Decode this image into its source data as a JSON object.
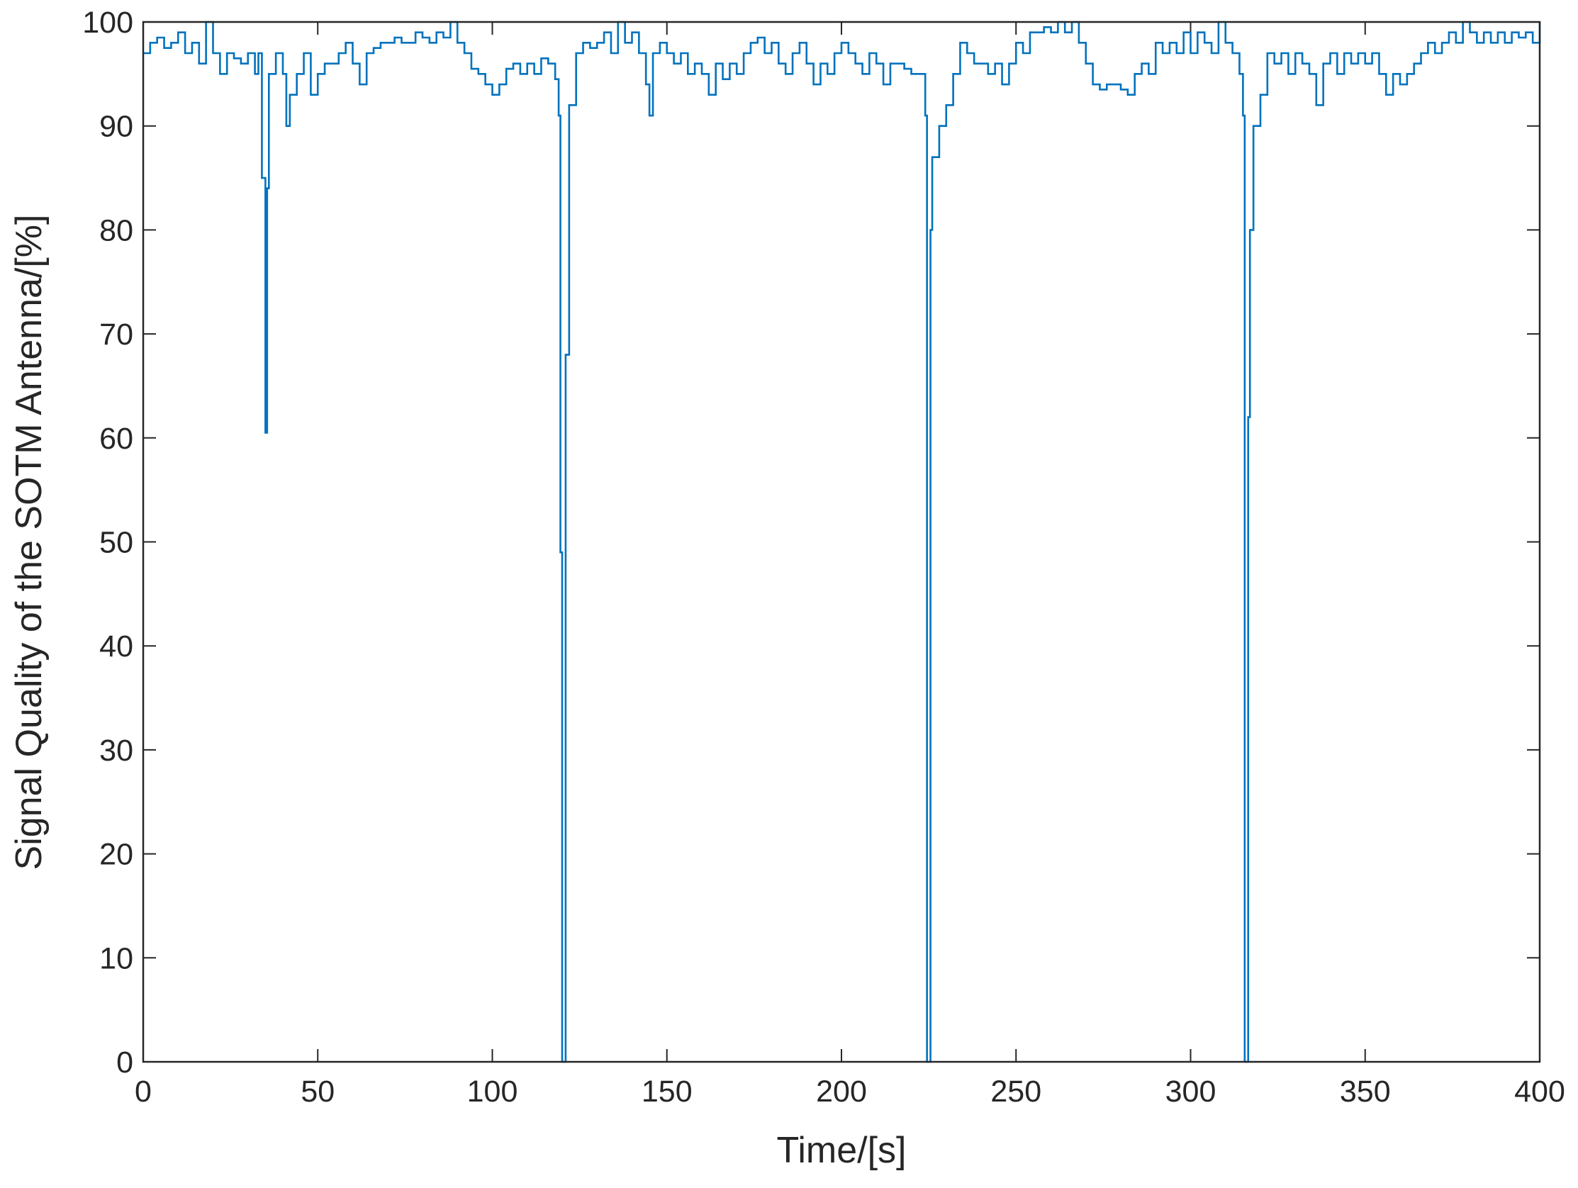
{
  "chart_data": {
    "type": "line",
    "drawstyle": "steps-post",
    "xlabel": "Time/[s]",
    "ylabel": "Signal Quality of the SOTM Antenna/[%]",
    "xlim": [
      0,
      400
    ],
    "ylim": [
      0,
      100
    ],
    "xticks": [
      0,
      50,
      100,
      150,
      200,
      250,
      300,
      350,
      400
    ],
    "yticks": [
      0,
      10,
      20,
      30,
      40,
      50,
      60,
      70,
      80,
      90,
      100
    ],
    "grid": false,
    "box": true,
    "x": [
      0,
      2,
      4,
      6,
      8,
      10,
      12,
      14,
      16,
      18,
      20,
      22,
      24,
      26,
      28,
      30,
      32,
      33,
      34,
      35,
      35.5,
      36,
      38,
      40,
      41,
      42,
      44,
      46,
      48,
      50,
      52,
      54,
      56,
      58,
      60,
      62,
      64,
      66,
      68,
      70,
      72,
      74,
      76,
      78,
      80,
      82,
      84,
      86,
      88,
      90,
      92,
      94,
      96,
      98,
      100,
      102,
      104,
      106,
      108,
      110,
      112,
      114,
      116,
      118,
      119,
      119.5,
      120,
      121,
      122,
      124,
      126,
      128,
      130,
      132,
      134,
      136,
      138,
      140,
      142,
      144,
      145,
      146,
      148,
      150,
      152,
      154,
      156,
      158,
      160,
      162,
      164,
      166,
      168,
      170,
      172,
      174,
      176,
      178,
      180,
      182,
      184,
      186,
      188,
      190,
      192,
      194,
      196,
      198,
      200,
      202,
      204,
      206,
      208,
      210,
      212,
      214,
      216,
      218,
      220,
      222,
      224,
      224.5,
      225.5,
      226,
      228,
      230,
      232,
      234,
      236,
      238,
      240,
      242,
      244,
      246,
      248,
      250,
      252,
      254,
      256,
      258,
      260,
      262,
      264,
      266,
      268,
      270,
      272,
      274,
      276,
      278,
      280,
      282,
      284,
      286,
      288,
      290,
      292,
      294,
      296,
      298,
      300,
      302,
      304,
      306,
      308,
      310,
      312,
      314,
      315,
      315.5,
      316.5,
      317,
      318,
      320,
      322,
      324,
      326,
      328,
      330,
      332,
      334,
      336,
      338,
      340,
      342,
      344,
      346,
      348,
      350,
      352,
      354,
      356,
      358,
      360,
      362,
      364,
      366,
      368,
      370,
      372,
      374,
      376,
      378,
      380,
      382,
      384,
      386,
      388,
      390,
      392,
      394,
      396,
      398,
      400
    ],
    "series": [
      {
        "color": "#0072bd",
        "values": [
          97,
          98,
          98.5,
          97.5,
          98,
          99,
          97,
          98,
          96,
          100,
          97,
          95,
          97,
          96.5,
          96,
          97,
          95,
          97,
          85,
          60.5,
          84,
          95,
          97,
          95,
          90,
          93,
          95,
          97,
          93,
          95,
          96,
          96,
          97,
          98,
          96,
          94,
          97,
          97.5,
          98,
          98,
          98.5,
          98,
          98,
          99,
          98.5,
          98,
          99,
          98.5,
          100,
          98,
          97,
          95.5,
          95,
          94,
          93,
          94,
          95.5,
          96,
          95,
          96,
          95,
          96.5,
          96,
          94.5,
          91,
          49,
          0,
          68,
          92,
          97,
          98,
          97.5,
          98,
          99,
          97,
          100,
          98,
          99,
          97,
          94,
          91,
          97,
          98,
          97,
          96,
          97,
          95,
          96,
          95,
          93,
          96,
          94.5,
          96,
          95,
          97,
          98,
          98.5,
          97,
          98,
          96,
          95,
          97,
          98,
          96,
          94,
          96,
          95,
          97,
          98,
          97,
          96,
          95,
          97,
          96,
          94,
          96,
          96,
          95.5,
          95,
          95,
          91,
          0,
          80,
          87,
          90,
          92,
          95,
          98,
          97,
          96,
          96,
          95,
          96,
          94,
          96,
          98,
          97,
          99,
          99,
          99.5,
          99,
          100,
          99,
          100,
          98,
          96,
          94,
          93.5,
          94,
          94,
          93.5,
          93,
          95,
          96,
          95,
          98,
          97,
          98,
          97,
          99,
          97,
          99,
          98,
          97,
          100,
          98,
          97,
          95,
          91,
          0,
          62,
          80,
          90,
          93,
          97,
          96,
          97,
          95,
          97,
          96,
          95,
          92,
          96,
          97,
          95,
          97,
          96,
          97,
          96,
          97,
          95,
          93,
          95,
          94,
          95,
          96,
          97,
          98,
          97,
          98,
          99,
          98,
          100,
          99,
          98,
          99,
          98,
          99,
          98,
          99,
          98.5,
          99,
          98,
          100
        ]
      }
    ]
  }
}
